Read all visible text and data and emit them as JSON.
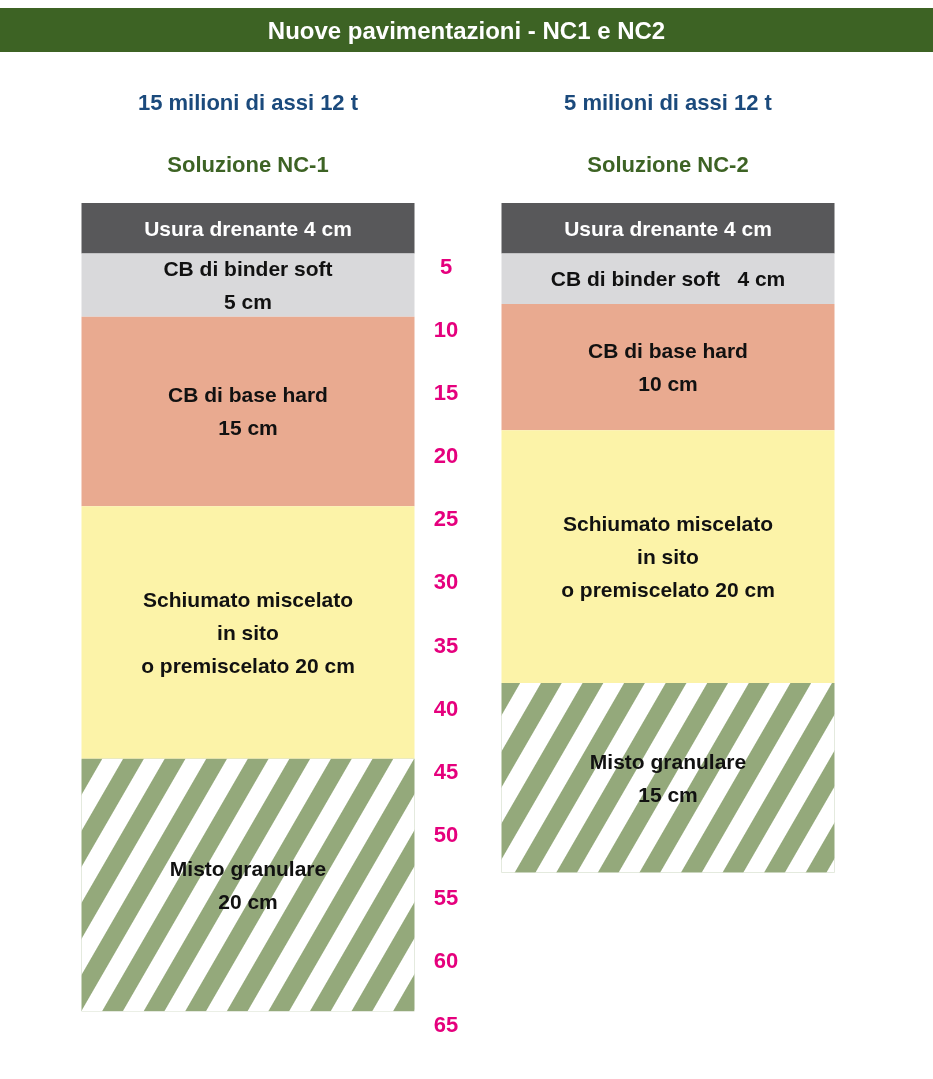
{
  "chart_data": {
    "type": "bar",
    "stacked": true,
    "title": "Nuove pavimentazioni - NC1 e NC2",
    "categories": [
      "Soluzione NC-1",
      "Soluzione NC-2"
    ],
    "annotations": [
      "15 milioni di assi 12 t",
      "5 milioni di assi 12 t"
    ],
    "series": [
      {
        "color": "#58585a",
        "values": [
          4,
          4
        ],
        "value_labels": [
          "Usura drenante 4 cm",
          "Usura drenante 4 cm"
        ]
      },
      {
        "color": "#d9d9db",
        "values": [
          5,
          4
        ],
        "value_labels": [
          "CB di binder soft\n5 cm",
          "CB di binder soft   4 cm"
        ]
      },
      {
        "color": "#e9aa90",
        "values": [
          15,
          10
        ],
        "value_labels": [
          "CB di base hard\n15 cm",
          "CB di base hard\n10 cm"
        ]
      },
      {
        "color": "#fcf3a8",
        "values": [
          20,
          20
        ],
        "value_labels": [
          "Schiumato miscelato\nin sito\no premiscelato 20 cm",
          "Schiumato miscelato\nin sito\no premiscelato 20 cm"
        ]
      },
      {
        "color": "#94a97b",
        "values": [
          20,
          15
        ],
        "value_labels": [
          "Misto granulare\n20 cm",
          "Misto granulare\n15 cm"
        ]
      }
    ],
    "ylim": [
      65,
      0
    ],
    "yticks": [
      5,
      10,
      15,
      20,
      25,
      30,
      35,
      40,
      45,
      50,
      55,
      60,
      65
    ],
    "grid": false
  }
}
